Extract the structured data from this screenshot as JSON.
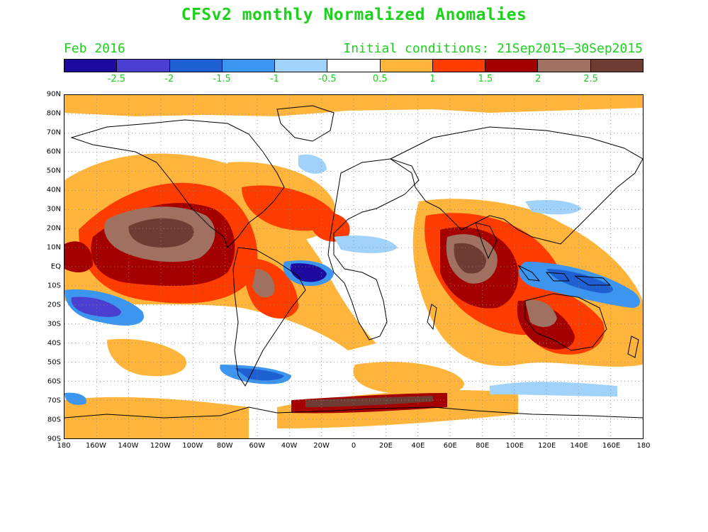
{
  "title": "CFSv2 monthly Normalized Anomalies",
  "month": "Feb 2016",
  "initial_conditions": "Initial conditions: 21Sep2015–30Sep2015",
  "colorbar": {
    "colors": [
      "#1e0a9e",
      "#4b3fd2",
      "#1e5fd2",
      "#3c96f0",
      "#a0d2fa",
      "#ffffff",
      "#ffb43c",
      "#ff3c00",
      "#a50000",
      "#a07060",
      "#6e3c32"
    ],
    "labels": [
      "-2.5",
      "-2",
      "-1.5",
      "-1",
      "-0.5",
      "0.5",
      "1",
      "1.5",
      "2",
      "2.5"
    ]
  },
  "lat_labels": [
    "90N",
    "80N",
    "70N",
    "60N",
    "50N",
    "40N",
    "30N",
    "20N",
    "10N",
    "EQ",
    "10S",
    "20S",
    "30S",
    "40S",
    "50S",
    "60S",
    "70S",
    "80S",
    "90S"
  ],
  "lon_labels": [
    "180",
    "160W",
    "140W",
    "120W",
    "100W",
    "80W",
    "60W",
    "40W",
    "20W",
    "0",
    "20E",
    "40E",
    "60E",
    "80E",
    "100E",
    "120E",
    "140E",
    "160E",
    "180"
  ]
}
